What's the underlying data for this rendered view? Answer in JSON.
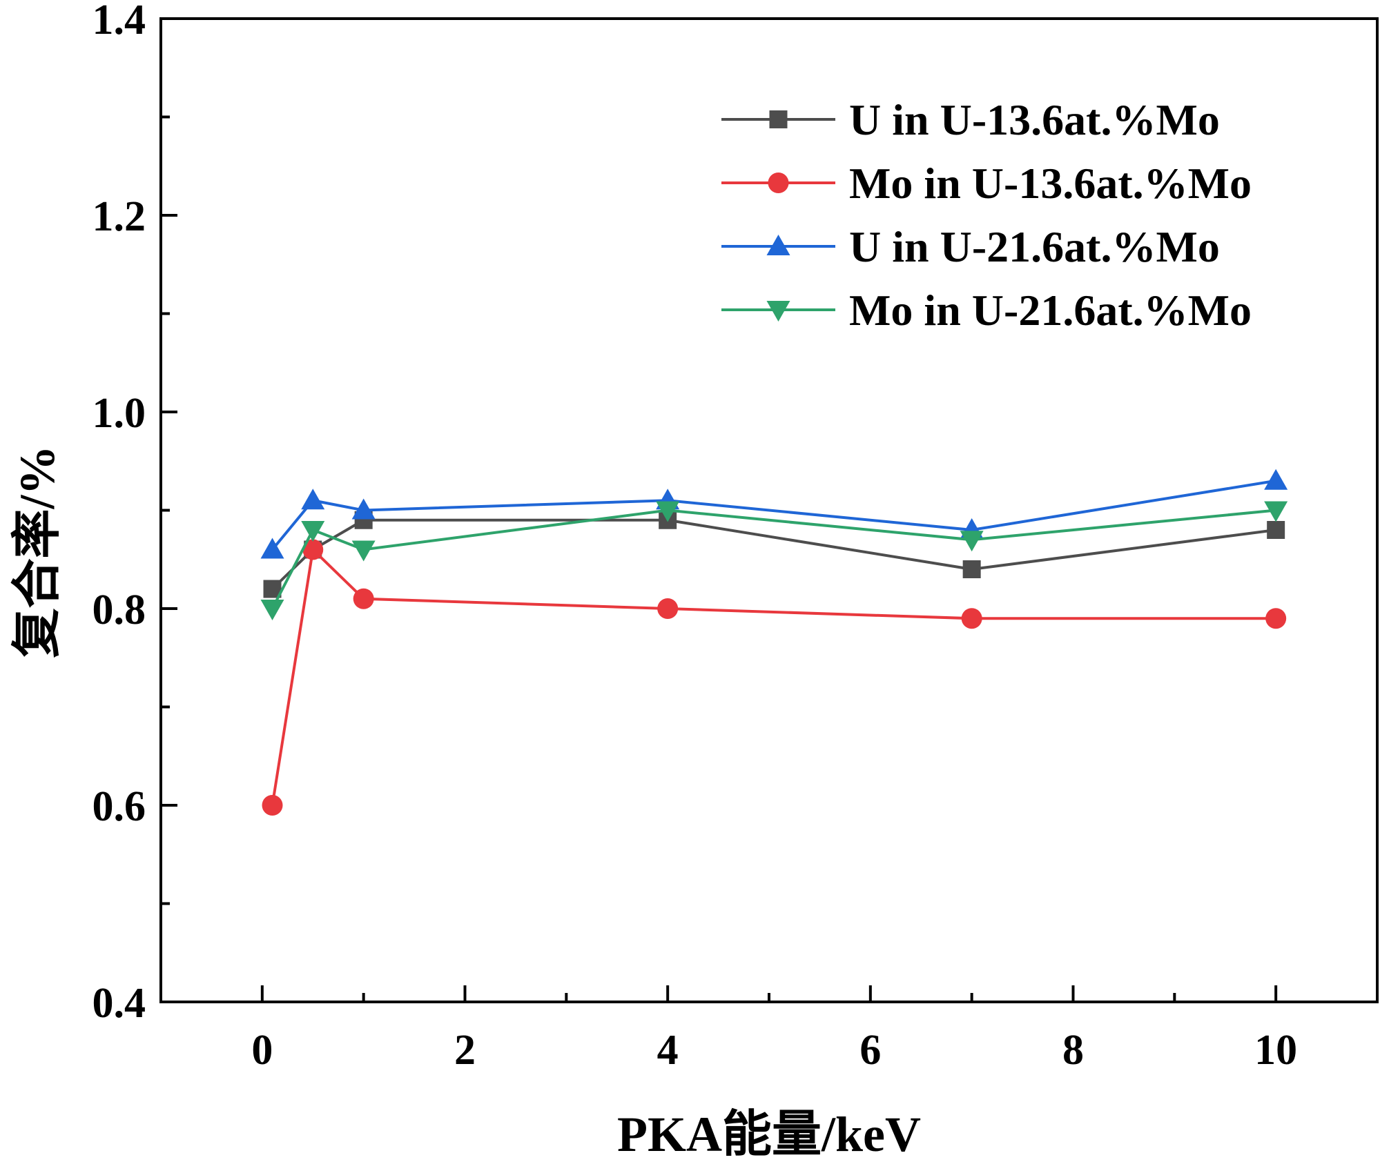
{
  "chart_data": {
    "type": "line",
    "title": "",
    "xlabel": "PKA能量/keV",
    "ylabel": "复合率/%",
    "xlim": [
      -1,
      11
    ],
    "ylim": [
      0.4,
      1.4
    ],
    "x": [
      0.1,
      0.5,
      1,
      4,
      7,
      10
    ],
    "xticks": [
      0,
      2,
      4,
      6,
      8,
      10
    ],
    "xtick_labels": [
      "0",
      "2",
      "4",
      "6",
      "8",
      "10"
    ],
    "yticks": [
      0.4,
      0.6,
      0.8,
      1.0,
      1.2,
      1.4
    ],
    "ytick_labels": [
      "0.4",
      "0.6",
      "0.8",
      "1.0",
      "1.2",
      "1.4"
    ],
    "grid": false,
    "legend_position": "top-right",
    "series": [
      {
        "name": "U in U-13.6at.%Mo",
        "color": "#4d4d4d",
        "marker": "square",
        "values": [
          0.82,
          0.86,
          0.89,
          0.89,
          0.84,
          0.88
        ]
      },
      {
        "name": "Mo in U-13.6at.%Mo",
        "color": "#e8383d",
        "marker": "circle",
        "values": [
          0.6,
          0.86,
          0.81,
          0.8,
          0.79,
          0.79
        ]
      },
      {
        "name": "U in U-21.6at.%Mo",
        "color": "#1f66d6",
        "marker": "triangle-up",
        "values": [
          0.86,
          0.91,
          0.9,
          0.91,
          0.88,
          0.93
        ]
      },
      {
        "name": "Mo in U-21.6at.%Mo",
        "color": "#2ea36b",
        "marker": "triangle-down",
        "values": [
          0.8,
          0.88,
          0.86,
          0.9,
          0.87,
          0.9
        ]
      }
    ]
  }
}
